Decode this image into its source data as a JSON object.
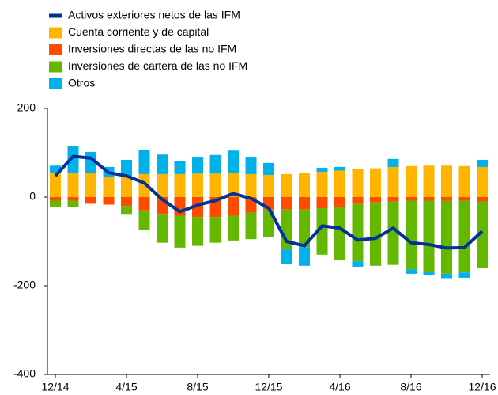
{
  "chart_data": {
    "type": "bar",
    "categories": [
      "12/14",
      null,
      null,
      null,
      "4/15",
      null,
      null,
      null,
      "8/15",
      null,
      null,
      null,
      "12/15",
      null,
      null,
      null,
      "4/16",
      null,
      null,
      null,
      "8/16",
      null,
      null,
      null,
      "12/16"
    ],
    "series": [
      {
        "name": "Activos exteriores netos de las IFM",
        "type": "line",
        "color": "#003299",
        "values": [
          48,
          92,
          88,
          55,
          48,
          32,
          -5,
          -33,
          -18,
          -8,
          8,
          -3,
          -25,
          -100,
          -110,
          -65,
          -70,
          -97,
          -93,
          -70,
          -103,
          -107,
          -115,
          -114,
          -77
        ]
      },
      {
        "name": "Cuenta corriente y de capital",
        "color": "#ffb400",
        "values": [
          55,
          55,
          55,
          45,
          48,
          52,
          52,
          52,
          53,
          53,
          54,
          52,
          50,
          52,
          54,
          57,
          60,
          63,
          65,
          68,
          70,
          71,
          71,
          70,
          68
        ]
      },
      {
        "name": "Inversiones directas de las no IFM",
        "color": "#ff4b00",
        "values": [
          -8,
          -8,
          -15,
          -17,
          -20,
          -30,
          -38,
          -42,
          -45,
          -45,
          -42,
          -35,
          -28,
          -28,
          -28,
          -25,
          -22,
          -15,
          -12,
          -10,
          -8,
          -8,
          -8,
          -8,
          -10
        ]
      },
      {
        "name": "Inversiones de cartera de las no IFM",
        "color": "#65b800",
        "values": [
          -15,
          -15,
          0,
          0,
          -18,
          -45,
          -65,
          -72,
          -65,
          -58,
          -56,
          -60,
          -62,
          -90,
          -85,
          -105,
          -120,
          -130,
          -143,
          -143,
          -155,
          -160,
          -165,
          -162,
          -150
        ]
      },
      {
        "name": "Otros",
        "color": "#00b1ea",
        "values": [
          16,
          61,
          47,
          23,
          36,
          55,
          44,
          30,
          38,
          42,
          51,
          39,
          27,
          -32,
          -42,
          9,
          8,
          -12,
          0,
          18,
          -10,
          -8,
          -10,
          -12,
          16
        ]
      }
    ],
    "ylim": [
      -400,
      200
    ],
    "yticks": [
      -400,
      -200,
      0,
      200
    ]
  }
}
